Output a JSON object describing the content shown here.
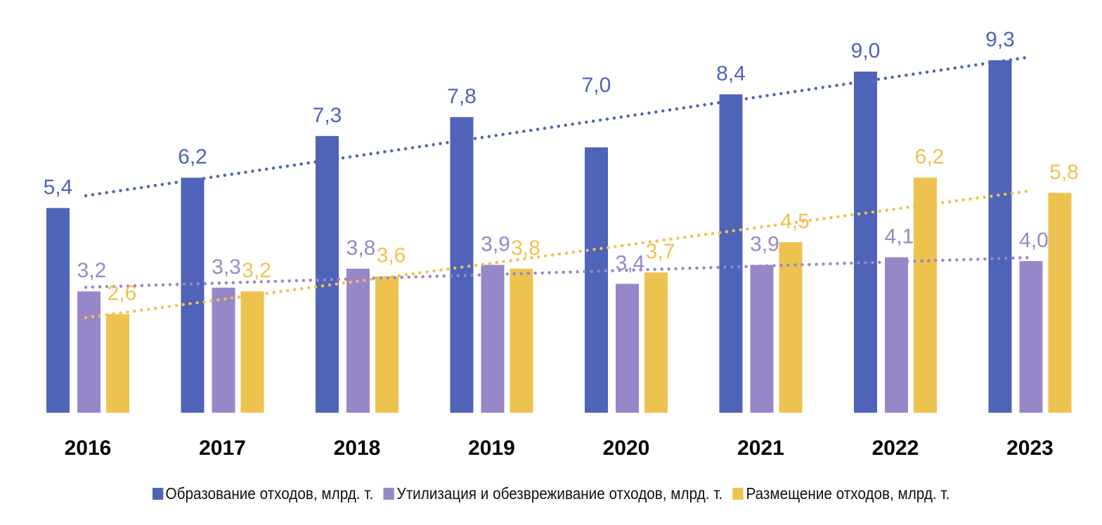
{
  "chart_data": {
    "type": "bar",
    "title": "",
    "xlabel": "",
    "ylabel": "",
    "ylim": [
      0,
      10
    ],
    "grid": false,
    "legend_position": "bottom",
    "categories": [
      "2016",
      "2017",
      "2018",
      "2019",
      "2020",
      "2021",
      "2022",
      "2023"
    ],
    "series": [
      {
        "name": "Образование отходов, млрд. т.",
        "color": "#4F63B8",
        "values": [
          5.4,
          6.2,
          7.3,
          7.8,
          7.0,
          8.4,
          9.0,
          9.3
        ],
        "labels": [
          "5,4",
          "6,2",
          "7,3",
          "7,8",
          "7,0",
          "8,4",
          "9,0",
          "9,3"
        ]
      },
      {
        "name": "Утилизация и обезвреживание отходов, млрд. т.",
        "color": "#9787C9",
        "values": [
          3.2,
          3.3,
          3.8,
          3.9,
          3.4,
          3.9,
          4.1,
          4.0
        ],
        "labels": [
          "3,2",
          "3,3",
          "3,8",
          "3,9",
          "3,4",
          "3,9",
          "4,1",
          "4,0"
        ]
      },
      {
        "name": "Размещение отходов, млрд. т.",
        "color": "#EDC24E",
        "values": [
          2.6,
          3.2,
          3.6,
          3.8,
          3.7,
          4.5,
          6.2,
          5.8
        ],
        "labels": [
          "2,6",
          "3,2",
          "3,6",
          "3,8",
          "3,7",
          "4,5",
          "6,2",
          "5,8"
        ]
      }
    ],
    "trendlines": "linear, dotted, one per series"
  }
}
